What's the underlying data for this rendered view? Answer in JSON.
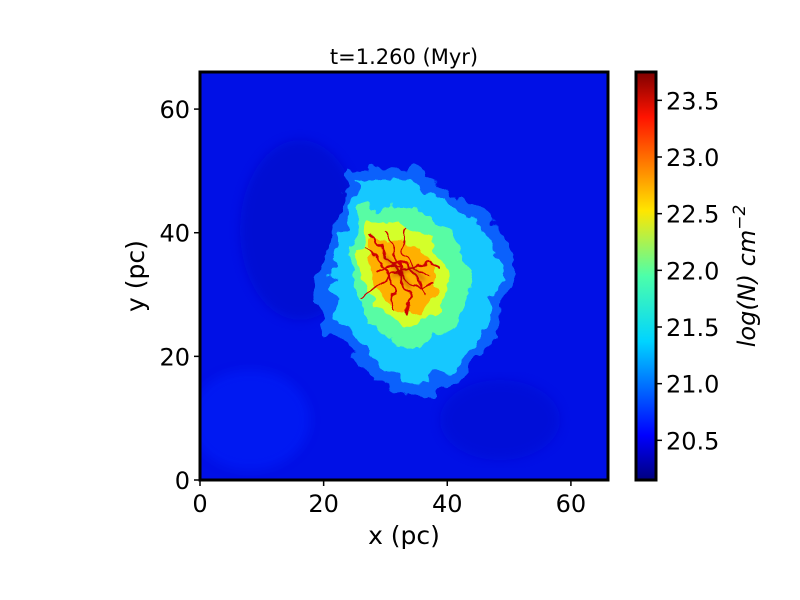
{
  "chart_data": {
    "type": "heatmap",
    "title": "t=1.260 (Myr)",
    "xlabel": "x (pc)",
    "ylabel": "y (pc)",
    "xlim": [
      0,
      66
    ],
    "ylim": [
      0,
      66
    ],
    "xticks": [
      0,
      20,
      40,
      60
    ],
    "yticks": [
      0,
      20,
      40,
      60
    ],
    "xtick_labels": [
      "0",
      "20",
      "40",
      "60"
    ],
    "ytick_labels": [
      "0",
      "20",
      "40",
      "60"
    ],
    "colormap": "jet",
    "colorbar": {
      "label": "log(N) cm",
      "label_exponent": "−2",
      "range": [
        20.15,
        23.75
      ],
      "ticks": [
        20.5,
        21.0,
        21.5,
        22.0,
        22.5,
        23.0,
        23.5
      ],
      "tick_labels": [
        "20.5",
        "21.0",
        "21.5",
        "22.0",
        "22.5",
        "23.0",
        "23.5"
      ]
    },
    "cloud": {
      "center": [
        34,
        33
      ],
      "core_center": [
        33,
        33
      ],
      "background_value": 20.4,
      "peak_value": 23.7
    }
  }
}
